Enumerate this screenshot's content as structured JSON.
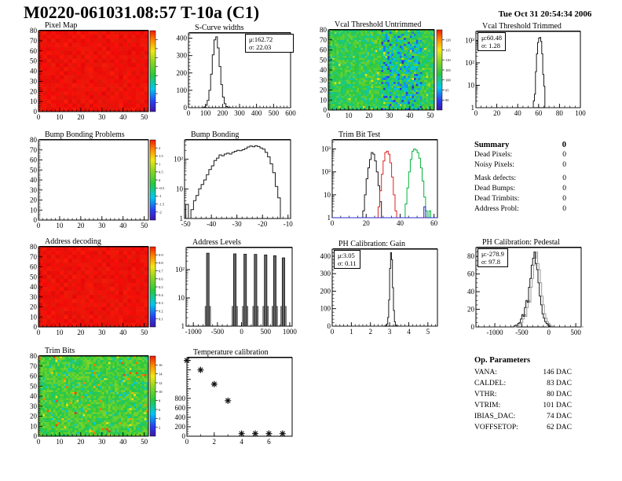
{
  "header": {
    "title": "M0220-061031.08:57 T-10a (C1)",
    "timestamp": "Tue Oct 31 20:54:34 2006"
  },
  "summary": {
    "heading": "Summary",
    "heading_value": "0",
    "rows": [
      {
        "label": "Dead Pixels:",
        "value": "0"
      },
      {
        "label": "Noisy Pixels:",
        "value": "0"
      },
      {
        "label": "Mask defects:",
        "value": "0"
      },
      {
        "label": "Dead Bumps:",
        "value": "0"
      },
      {
        "label": "Dead Trimbits:",
        "value": "0"
      },
      {
        "label": "Address Probl:",
        "value": "0"
      }
    ]
  },
  "op_parameters": {
    "heading": "Op. Parameters",
    "rows": [
      {
        "label": "VANA:",
        "value": "146 DAC"
      },
      {
        "label": "CALDEL:",
        "value": "83 DAC"
      },
      {
        "label": "VTHR:",
        "value": "80 DAC"
      },
      {
        "label": "VTRIM:",
        "value": "101 DAC"
      },
      {
        "label": "IBIAS_DAC:",
        "value": "74 DAC"
      },
      {
        "label": "VOFFSETOP:",
        "value": "62 DAC"
      }
    ]
  },
  "colors": {
    "hist_line": "#1a1a1a",
    "trimbit_black": "#1a1a1a",
    "trimbit_red": "#e02020",
    "trimbit_green": "#00b43c",
    "trimbit_blue": "#2828cc",
    "map_red": "#ee1008"
  },
  "chart_data": [
    {
      "id": "pixel_map",
      "type": "heatmap",
      "title": "Pixel Map",
      "style": "red",
      "xlim": [
        0,
        52
      ],
      "ylim": [
        0,
        80
      ],
      "xticks": [
        [
          0,
          "0"
        ],
        [
          10,
          "10"
        ],
        [
          20,
          "20"
        ],
        [
          30,
          "30"
        ],
        [
          40,
          "40"
        ],
        [
          50,
          "50"
        ]
      ],
      "xminor": 2,
      "yticks": [
        [
          0,
          "0"
        ],
        [
          10,
          "10"
        ],
        [
          20,
          "20"
        ],
        [
          30,
          "30"
        ],
        [
          40,
          "40"
        ],
        [
          50,
          "50"
        ],
        [
          60,
          "60"
        ],
        [
          70,
          "70"
        ],
        [
          80,
          "80"
        ]
      ],
      "yminor": 2,
      "colorbar_labels": []
    },
    {
      "id": "scurve_widths",
      "type": "hist",
      "title": "S-Curve widths",
      "xlim": [
        0,
        600
      ],
      "ylim": [
        0,
        430
      ],
      "xticks": [
        [
          0,
          "0"
        ],
        [
          100,
          "100"
        ],
        [
          200,
          "200"
        ],
        [
          300,
          "300"
        ],
        [
          400,
          "400"
        ],
        [
          500,
          "500"
        ],
        [
          600,
          "600"
        ]
      ],
      "xminor": 20,
      "yticks": [
        [
          0,
          "0"
        ],
        [
          100,
          "100"
        ],
        [
          200,
          "200"
        ],
        [
          300,
          "300"
        ],
        [
          400,
          "400"
        ]
      ],
      "yminor": 20,
      "stats": [
        "μ:162.72",
        "σ: 22.03"
      ],
      "series": [
        {
          "color": "#1a1a1a",
          "x0": 80,
          "bw": 10,
          "v": [
            1,
            4,
            14,
            42,
            100,
            193,
            304,
            390,
            408,
            344,
            237,
            133,
            61,
            23,
            7,
            2,
            1
          ]
        }
      ]
    },
    {
      "id": "vcal_untrimmed",
      "type": "heatmap",
      "title": "Vcal Threshold Untrimmed",
      "style": "noise",
      "noise": {
        "seed": 7,
        "base": 0.46,
        "spread": 0.24,
        "band": [
          26,
          45,
          0.4,
          -0.22
        ],
        "speck": [
          0.015,
          0.62,
          0.78
        ]
      },
      "xlim": [
        0,
        52
      ],
      "ylim": [
        0,
        80
      ],
      "xticks": [
        [
          0,
          "0"
        ],
        [
          10,
          "10"
        ],
        [
          20,
          "20"
        ],
        [
          30,
          "30"
        ],
        [
          40,
          "40"
        ],
        [
          50,
          "50"
        ]
      ],
      "xminor": 2,
      "yticks": [
        [
          0,
          "0"
        ],
        [
          10,
          "10"
        ],
        [
          20,
          "20"
        ],
        [
          30,
          "30"
        ],
        [
          40,
          "40"
        ],
        [
          50,
          "50"
        ],
        [
          60,
          "60"
        ],
        [
          70,
          "70"
        ],
        [
          80,
          "80"
        ]
      ],
      "yminor": 2,
      "colorbar_labels": [
        "120",
        "115",
        "110",
        "105",
        "100",
        "95",
        "90"
      ]
    },
    {
      "id": "vcal_trimmed",
      "type": "hist",
      "title": "Vcal Threshold Trimmed",
      "xlim": [
        0,
        100
      ],
      "ylog": true,
      "ylim": [
        1,
        2500
      ],
      "xticks": [
        [
          0,
          "0"
        ],
        [
          20,
          "20"
        ],
        [
          40,
          "40"
        ],
        [
          60,
          "60"
        ],
        [
          80,
          "80"
        ],
        [
          100,
          "100"
        ]
      ],
      "xminor": 5,
      "yticks": [
        [
          1,
          "1"
        ],
        [
          10,
          "10"
        ],
        [
          100,
          "10²"
        ],
        [
          1000,
          "10³"
        ]
      ],
      "stats": [
        "μ:60.48",
        "σ: 1.28"
      ],
      "series": [
        {
          "color": "#1a1a1a",
          "x0": 53,
          "bw": 1,
          "v": [
            1,
            1,
            2,
            4,
            40,
            250,
            800,
            1250,
            1350,
            900,
            250,
            30,
            9,
            1
          ]
        }
      ]
    },
    {
      "id": "bump_problems",
      "type": "heatmap",
      "title": "Bump Bonding Problems",
      "style": "empty",
      "xlim": [
        0,
        52
      ],
      "ylim": [
        0,
        80
      ],
      "xticks": [
        [
          0,
          "0"
        ],
        [
          10,
          "10"
        ],
        [
          20,
          "20"
        ],
        [
          30,
          "30"
        ],
        [
          40,
          "40"
        ],
        [
          50,
          "50"
        ]
      ],
      "xminor": 2,
      "yticks": [
        [
          0,
          "0"
        ],
        [
          10,
          "10"
        ],
        [
          20,
          "20"
        ],
        [
          30,
          "30"
        ],
        [
          40,
          "40"
        ],
        [
          50,
          "50"
        ],
        [
          60,
          "60"
        ],
        [
          70,
          "70"
        ],
        [
          80,
          "80"
        ]
      ],
      "yminor": 2,
      "colorbar_labels": [
        "2",
        "1.5",
        "1",
        "0.5",
        "0",
        "-0.5",
        "-1",
        "-1.5",
        "-2"
      ]
    },
    {
      "id": "bump_bonding",
      "type": "hist",
      "title": "Bump Bonding",
      "xlim": [
        -50.5,
        -9
      ],
      "ylog": true,
      "ylim": [
        1,
        450
      ],
      "xticks": [
        [
          -50,
          "-50"
        ],
        [
          -40,
          "-40"
        ],
        [
          -30,
          "-30"
        ],
        [
          -20,
          "-20"
        ],
        [
          -10,
          "-10"
        ]
      ],
      "xminor": 2,
      "yticks": [
        [
          1,
          "1"
        ],
        [
          10,
          "10"
        ],
        [
          100,
          "10²"
        ]
      ],
      "series": [
        {
          "color": "#1a1a1a",
          "x0": -50,
          "bw": 1,
          "v": [
            3,
            1,
            2,
            4,
            6,
            10,
            14,
            20,
            30,
            45,
            60,
            90,
            110,
            140,
            130,
            150,
            160,
            150,
            170,
            185,
            200,
            195,
            210,
            230,
            260,
            280,
            265,
            285,
            270,
            240,
            220,
            170,
            120,
            70,
            35,
            12,
            5
          ]
        }
      ]
    },
    {
      "id": "trim_bit_test",
      "type": "hist",
      "title": "Trim Bit Test",
      "xlim": [
        0,
        62
      ],
      "ylog": true,
      "ylim": [
        1,
        2500
      ],
      "xticks": [
        [
          0,
          "0"
        ],
        [
          20,
          "20"
        ],
        [
          40,
          "40"
        ],
        [
          60,
          "60"
        ]
      ],
      "xminor": 5,
      "yticks": [
        [
          1,
          "1"
        ],
        [
          10,
          "10"
        ],
        [
          100,
          "10²"
        ],
        [
          1000,
          "10³"
        ]
      ],
      "series": [
        {
          "color": "#1a1a1a",
          "x0": 17,
          "bw": 1,
          "v": [
            1,
            2,
            10,
            50,
            150,
            350,
            700,
            600,
            300,
            100,
            25,
            5,
            1
          ]
        },
        {
          "color": "#e02020",
          "x0": 26,
          "bw": 1,
          "v": [
            1,
            3,
            15,
            80,
            300,
            700,
            800,
            600,
            250,
            60,
            10,
            2
          ]
        },
        {
          "color": "#00b43c",
          "x0": 42,
          "bw": 1,
          "v": [
            1,
            4,
            20,
            100,
            350,
            800,
            1000,
            900,
            700,
            400,
            150,
            40,
            8,
            2,
            0,
            2
          ]
        },
        {
          "color": "#2828cc",
          "x0": 54,
          "bw": 1,
          "v": [
            3
          ]
        }
      ]
    },
    {
      "id": "address_decoding",
      "type": "heatmap",
      "title": "Address decoding",
      "style": "red",
      "xlim": [
        0,
        52
      ],
      "ylim": [
        0,
        80
      ],
      "xticks": [
        [
          0,
          "0"
        ],
        [
          10,
          "10"
        ],
        [
          20,
          "20"
        ],
        [
          30,
          "30"
        ],
        [
          40,
          "40"
        ],
        [
          50,
          "50"
        ]
      ],
      "xminor": 2,
      "yticks": [
        [
          0,
          "0"
        ],
        [
          10,
          "10"
        ],
        [
          20,
          "20"
        ],
        [
          30,
          "30"
        ],
        [
          40,
          "40"
        ],
        [
          50,
          "50"
        ],
        [
          60,
          "60"
        ],
        [
          70,
          "70"
        ],
        [
          80,
          "80"
        ]
      ],
      "yminor": 2,
      "colorbar_labels": [
        "0.9",
        "0.8",
        "0.7",
        "0.6",
        "0.5",
        "0.4",
        "0.3",
        "0.2",
        "0.1"
      ]
    },
    {
      "id": "address_levels",
      "type": "spikes",
      "title": "Address Levels",
      "xlim": [
        -1150,
        1050
      ],
      "ylog": true,
      "ylim": [
        1,
        600
      ],
      "xticks": [
        [
          -1000,
          "-1000"
        ],
        [
          -500,
          "-500"
        ],
        [
          0,
          "0"
        ],
        [
          500,
          "500"
        ],
        [
          1000,
          "1000"
        ]
      ],
      "xminor": 100,
      "yticks": [
        [
          1,
          "1"
        ],
        [
          10,
          "10"
        ],
        [
          100,
          "10²"
        ]
      ],
      "spikes": [
        [
          -700,
          380
        ],
        [
          -140,
          360
        ],
        [
          75,
          350
        ],
        [
          290,
          345
        ],
        [
          500,
          330
        ],
        [
          690,
          310
        ],
        [
          870,
          260
        ]
      ]
    },
    {
      "id": "ph_gain",
      "type": "hist",
      "title": "PH Calibration: Gain",
      "xlim": [
        0,
        5.5
      ],
      "ylim": [
        0,
        440
      ],
      "xticks": [
        [
          0,
          "0"
        ],
        [
          1,
          "1"
        ],
        [
          2,
          "2"
        ],
        [
          3,
          "3"
        ],
        [
          4,
          "4"
        ],
        [
          5,
          "5"
        ]
      ],
      "xminor": 0.2,
      "yticks": [
        [
          0,
          "0"
        ],
        [
          100,
          "100"
        ],
        [
          200,
          "200"
        ],
        [
          300,
          "300"
        ],
        [
          400,
          "400"
        ]
      ],
      "yminor": 20,
      "stats": [
        "μ:3.05",
        "σ: 0.11"
      ],
      "series": [
        {
          "color": "#1a1a1a",
          "x0": 2.7,
          "bw": 0.05,
          "v": [
            1,
            2,
            4,
            12,
            50,
            150,
            330,
            420,
            380,
            220,
            90,
            25,
            6,
            2,
            1
          ]
        }
      ]
    },
    {
      "id": "ph_pedestal",
      "type": "hist",
      "title": "PH Calibration: Pedestal",
      "ghost": true,
      "xlim": [
        -1350,
        600
      ],
      "ylim": [
        0,
        90
      ],
      "xticks": [
        [
          -1000,
          "-1000"
        ],
        [
          -500,
          "-500"
        ],
        [
          0,
          "0"
        ],
        [
          500,
          "500"
        ]
      ],
      "xminor": 100,
      "yticks": [
        [
          0,
          "0"
        ],
        [
          20,
          "20"
        ],
        [
          40,
          "40"
        ],
        [
          60,
          "60"
        ],
        [
          80,
          "80"
        ]
      ],
      "yminor": 5,
      "stats": [
        "μ:-278.9",
        "σ: 97.8"
      ],
      "series": [
        {
          "color": "#1a1a1a",
          "x0": -650,
          "bw": 25,
          "v": [
            1,
            2,
            2,
            4,
            5,
            9,
            14,
            12,
            22,
            30,
            28,
            45,
            55,
            70,
            78,
            85,
            72,
            65,
            50,
            35,
            25,
            15,
            10,
            6,
            4,
            2,
            1
          ]
        }
      ]
    },
    {
      "id": "trim_bits",
      "type": "heatmap",
      "title": "Trim Bits",
      "style": "noise",
      "noise": {
        "seed": 3,
        "base": 0.5,
        "spread": 0.2,
        "speck": [
          0.04,
          0.72,
          0.98
        ],
        "speck2": [
          0.05,
          0.27,
          0.36
        ]
      },
      "xlim": [
        0,
        52
      ],
      "ylim": [
        0,
        80
      ],
      "xticks": [
        [
          0,
          "0"
        ],
        [
          10,
          "10"
        ],
        [
          20,
          "20"
        ],
        [
          30,
          "30"
        ],
        [
          40,
          "40"
        ],
        [
          50,
          "50"
        ]
      ],
      "xminor": 2,
      "yticks": [
        [
          0,
          "0"
        ],
        [
          10,
          "10"
        ],
        [
          20,
          "20"
        ],
        [
          30,
          "30"
        ],
        [
          40,
          "40"
        ],
        [
          50,
          "50"
        ],
        [
          60,
          "60"
        ],
        [
          70,
          "70"
        ],
        [
          80,
          "80"
        ]
      ],
      "yminor": 2,
      "colorbar_labels": [
        "16",
        "14",
        "12",
        "10",
        "8",
        "6",
        "4",
        "2"
      ]
    },
    {
      "id": "temperature",
      "type": "scatter",
      "title": "Temperature calibration",
      "xlim": [
        0,
        7.7
      ],
      "ylim": [
        0,
        1660
      ],
      "xticks": [
        [
          0,
          "0"
        ],
        [
          2,
          "2"
        ],
        [
          4,
          "4"
        ],
        [
          6,
          "6"
        ]
      ],
      "xminor": 1,
      "yticks": [
        [
          0,
          "0"
        ],
        [
          200,
          "200"
        ],
        [
          400,
          "400"
        ],
        [
          600,
          "600"
        ],
        [
          800,
          "800"
        ],
        [
          1000,
          ""
        ],
        [
          1200,
          ""
        ],
        [
          1400,
          ""
        ],
        [
          1600,
          ""
        ]
      ],
      "yminor": 50,
      "points": [
        [
          0,
          1600
        ],
        [
          1,
          1400
        ],
        [
          2,
          1100
        ],
        [
          3,
          750
        ],
        [
          4,
          55
        ],
        [
          5,
          55
        ],
        [
          6,
          55
        ],
        [
          7,
          55
        ]
      ]
    }
  ]
}
